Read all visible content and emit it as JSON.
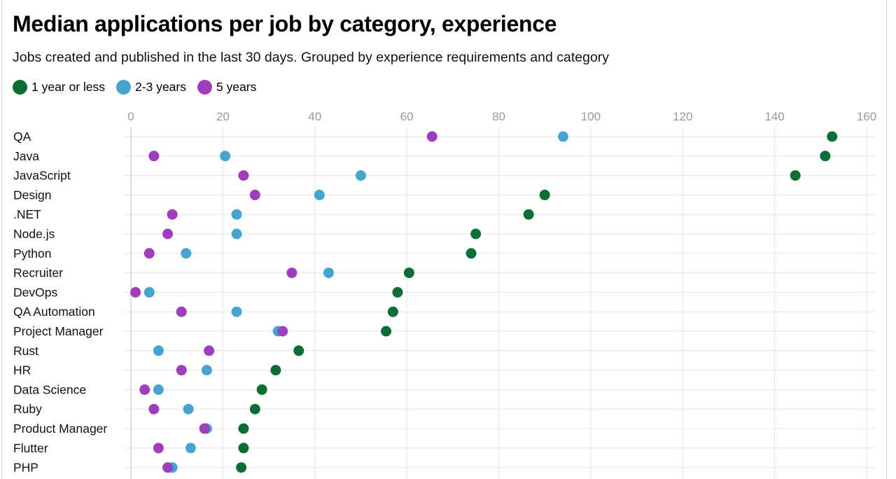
{
  "chart_data": {
    "type": "scatter",
    "title": "Median applications per job by category, experience",
    "subtitle": "Jobs created and published in the last 30 days. Grouped by experience requirements and category",
    "xlim": [
      0,
      160
    ],
    "x_ticks": [
      "0",
      "20",
      "40",
      "60",
      "80",
      "100",
      "120",
      "140",
      "160"
    ],
    "grid": true,
    "legend_position": "top-left",
    "categories": [
      "QA",
      "Java",
      "JavaScript",
      "Design",
      ".NET",
      "Node.js",
      "Python",
      "Recruiter",
      "DevOps",
      "QA Automation",
      "Project Manager",
      "Rust",
      "HR",
      "Data Science",
      "Ruby",
      "Product Manager",
      "Flutter",
      "PHP"
    ],
    "series": [
      {
        "name": "1 year or less",
        "color": "#0b6e35",
        "values": [
          152.5,
          151,
          144.5,
          90,
          86.5,
          75,
          74,
          60.5,
          58,
          57,
          55.5,
          36.5,
          31.5,
          28.5,
          27,
          24.5,
          24.5,
          24
        ]
      },
      {
        "name": "2-3 years",
        "color": "#46a4d1",
        "values": [
          94,
          20.5,
          50,
          41,
          23,
          23,
          12,
          43,
          4,
          23,
          32,
          6,
          16.5,
          6,
          12.5,
          16.5,
          13,
          9
        ]
      },
      {
        "name": "5 years",
        "color": "#a03dbf",
        "values": [
          65.5,
          5,
          24.5,
          27,
          9,
          8,
          4,
          35,
          1,
          11,
          33,
          17,
          11,
          3,
          5,
          16,
          6,
          8
        ]
      }
    ]
  }
}
